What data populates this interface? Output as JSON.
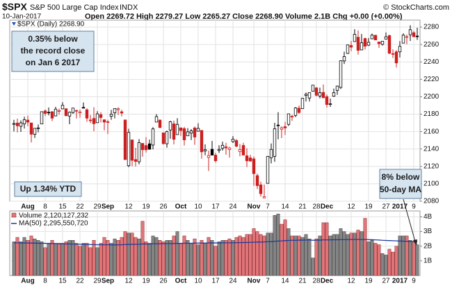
{
  "header": {
    "symbol": "$SPX",
    "name": "S&P 500 Large Cap Index",
    "exchange": "INDX",
    "credit": "© StockCharts.com",
    "date": "10-Jan-2017",
    "quote": "Open 2269.72 High 2279.27 Low 2265.27 Close 2268.90 Volume 2.1B Chg +0.00 (+0.00%)"
  },
  "chart_data": [
    {
      "type": "candlestick",
      "name": "$SPX (Daily) 2268.90",
      "up_color": "#000000",
      "down_color": "#cc1f1f",
      "grid": true,
      "ylim": [
        2080,
        2288
      ],
      "yticks": [
        2080,
        2100,
        2120,
        2140,
        2160,
        2180,
        2200,
        2220,
        2240,
        2260,
        2280
      ],
      "annotations": [
        {
          "lines": [
            "0.35% below",
            "the record close",
            "on Jan 6 2017"
          ]
        },
        {
          "lines": [
            "Up 1.34% YTD"
          ]
        },
        {
          "lines": [
            "8% below",
            "50-day MA"
          ]
        }
      ],
      "categories": [
        null,
        null,
        null,
        null,
        "Aug",
        null,
        null,
        null,
        null,
        "8",
        null,
        null,
        null,
        null,
        "15",
        null,
        null,
        null,
        null,
        "22",
        null,
        null,
        null,
        null,
        "29",
        null,
        null,
        "Sep",
        null,
        null,
        null,
        null,
        null,
        "12",
        null,
        null,
        null,
        null,
        "19",
        null,
        null,
        null,
        null,
        "26",
        null,
        null,
        null,
        null,
        "Oct",
        null,
        null,
        null,
        null,
        "10",
        null,
        null,
        null,
        null,
        "17",
        null,
        null,
        null,
        null,
        "24",
        null,
        null,
        null,
        null,
        null,
        "Nov",
        null,
        null,
        null,
        "7",
        null,
        null,
        null,
        null,
        "14",
        null,
        null,
        null,
        null,
        "21",
        null,
        null,
        null,
        "28",
        null,
        null,
        "Dec",
        null,
        null,
        null,
        null,
        null,
        null,
        "12",
        null,
        null,
        null,
        null,
        "19",
        null,
        null,
        null,
        null,
        "27",
        null,
        null,
        null,
        "2017",
        null,
        null,
        null,
        "9",
        null
      ],
      "open": [
        2168.97,
        2169.81,
        2166.05,
        2168.83,
        2173.15,
        2169.94,
        2156.81,
        2163.51,
        2168.79,
        2183.76,
        2182.24,
        2182.81,
        2177.97,
        2183.74,
        2186.08,
        2186.24,
        2177.84,
        2181.9,
        2184.24,
        2181.58,
        2187.81,
        2185.09,
        2173.29,
        2175.1,
        2170.19,
        2179.45,
        2173.56,
        2171.33,
        2177.49,
        2181.61,
        2185.17,
        2182.76,
        2173.38,
        2120.86,
        2150.47,
        2127.86,
        2125.36,
        2146.48,
        2143.99,
        2145.94,
        2144.58,
        2170.94,
        2173.29,
        2158.54,
        2146.04,
        2161.85,
        2168.9,
        2156.51,
        2164.33,
        2163.37,
        2155.15,
        2158.22,
        2164.19,
        2160.39,
        2161.35,
        2137.67,
        2130.26,
        2139.68,
        2132.95,
        2138.31,
        2140.81,
        2142.51,
        2139.43,
        2148.5,
        2149.72,
        2136.97,
        2144.06,
        2132.23,
        2129.78,
        2128.68,
        2109.43,
        2098.8,
        2083.79,
        2100.59,
        2129.92,
        2131.56,
        2167.49,
        2162.71,
        2165.64,
        2168.29,
        2177.53,
        2178.61,
        2186.85,
        2186.43,
        2201.56,
        2198.55,
        2206.27,
        2210.21,
        2200.76,
        2204.97,
        2200.17,
        2191.12,
        2200.65,
        2207.26,
        2210.72,
        2241.13,
        2249.73,
        2258.83,
        2263.32,
        2268.35,
        2253.77,
        2266.81,
        2259.24,
        2266.5,
        2270.54,
        2262.93,
        2260.25,
        2266.23,
        2270.23,
        2249.5,
        2251.61,
        2251.57,
        2261.6,
        2268.18,
        2271.14,
        2273.59,
        2269.72
      ],
      "high": [
        2173.54,
        2174.98,
        2172.85,
        2177.09,
        2178.29,
        2170.2,
        2163.79,
        2168.19,
        2182.87,
        2185.44,
        2187.66,
        2183.41,
        2188.45,
        2186.28,
        2193.81,
        2186.24,
        2183.08,
        2187.03,
        2185.0,
        2185.15,
        2193.42,
        2186.66,
        2179.0,
        2187.94,
        2183.48,
        2182.27,
        2173.79,
        2173.56,
        2184.87,
        2186.57,
        2187.87,
        2184.94,
        2173.38,
        2163.3,
        2150.47,
        2141.33,
        2151.31,
        2146.48,
        2153.61,
        2150.8,
        2165.11,
        2179.99,
        2173.75,
        2158.54,
        2161.13,
        2172.4,
        2172.67,
        2175.3,
        2164.41,
        2165.46,
        2163.95,
        2162.93,
        2165.86,
        2169.6,
        2161.56,
        2145.36,
        2138.19,
        2149.19,
        2135.61,
        2144.38,
        2148.44,
        2147.18,
        2142.63,
        2154.79,
        2151.44,
        2145.73,
        2147.13,
        2140.72,
        2133.25,
        2131.45,
        2111.76,
        2102.56,
        2099.07,
        2132.0,
        2146.38,
        2170.1,
        2182.3,
        2165.92,
        2171.36,
        2180.84,
        2179.22,
        2188.06,
        2189.89,
        2198.7,
        2204.8,
        2204.72,
        2213.35,
        2211.14,
        2210.46,
        2214.1,
        2202.6,
        2197.95,
        2209.42,
        2212.78,
        2241.63,
        2251.69,
        2259.8,
        2264.03,
        2277.53,
        2276.2,
        2272.12,
        2268.05,
        2267.47,
        2272.56,
        2271.23,
        2263.18,
        2263.79,
        2273.82,
        2271.31,
        2254.51,
        2253.58,
        2263.88,
        2272.82,
        2271.5,
        2282.1,
        2275.49,
        2279.27
      ],
      "low": [
        2160.18,
        2159.07,
        2159.74,
        2163.49,
        2166.21,
        2147.58,
        2152.7,
        2159.07,
        2168.79,
        2177.85,
        2178.61,
        2172.0,
        2177.97,
        2179.42,
        2186.08,
        2178.14,
        2168.5,
        2180.46,
        2175.13,
        2175.96,
        2186.8,
        2171.25,
        2169.74,
        2160.39,
        2170.19,
        2170.41,
        2161.35,
        2157.09,
        2173.59,
        2175.1,
        2179.07,
        2177.49,
        2127.81,
        2119.12,
        2120.27,
        2119.9,
        2122.36,
        2131.2,
        2135.91,
        2139.17,
        2139.57,
        2170.94,
        2163.97,
        2145.04,
        2141.55,
        2151.79,
        2145.2,
        2156.51,
        2154.77,
        2144.01,
        2155.15,
        2150.28,
        2144.85,
        2160.39,
        2128.84,
        2132.77,
        2114.72,
        2132.98,
        2124.43,
        2135.49,
        2138.15,
        2133.44,
        2130.09,
        2146.91,
        2141.93,
        2131.59,
        2132.52,
        2119.36,
        2125.53,
        2097.85,
        2094.0,
        2085.23,
        2083.79,
        2100.59,
        2123.56,
        2125.35,
        2151.17,
        2152.49,
        2156.08,
        2166.38,
        2172.2,
        2176.65,
        2180.38,
        2186.43,
        2194.51,
        2194.51,
        2206.27,
        2200.36,
        2198.15,
        2198.81,
        2187.44,
        2188.37,
        2199.97,
        2202.21,
        2208.93,
        2237.57,
        2249.23,
        2252.37,
        2263.32,
        2248.44,
        2253.77,
        2254.24,
        2258.21,
        2266.14,
        2265.15,
        2256.08,
        2258.84,
        2266.15,
        2249.11,
        2244.56,
        2233.62,
        2245.13,
        2261.6,
        2260.45,
        2264.06,
        2268.9,
        2265.27
      ],
      "close": [
        2169.18,
        2166.58,
        2170.06,
        2173.6,
        2170.84,
        2157.03,
        2163.79,
        2164.25,
        2182.87,
        2180.89,
        2181.74,
        2175.49,
        2185.79,
        2184.05,
        2190.15,
        2178.15,
        2182.22,
        2187.02,
        2183.87,
        2182.64,
        2186.9,
        2175.44,
        2172.47,
        2169.04,
        2180.38,
        2176.12,
        2170.95,
        2170.86,
        2179.98,
        2186.48,
        2186.16,
        2181.3,
        2127.81,
        2159.04,
        2127.02,
        2125.77,
        2147.26,
        2139.16,
        2139.12,
        2139.76,
        2163.12,
        2177.18,
        2164.69,
        2146.1,
        2159.93,
        2171.37,
        2151.13,
        2168.27,
        2161.2,
        2150.49,
        2159.73,
        2160.77,
        2153.74,
        2163.66,
        2136.73,
        2139.18,
        2132.55,
        2132.98,
        2126.5,
        2139.6,
        2144.29,
        2141.34,
        2141.16,
        2151.33,
        2143.16,
        2139.43,
        2133.04,
        2126.41,
        2126.15,
        2111.72,
        2097.94,
        2088.66,
        2085.18,
        2131.52,
        2139.56,
        2163.26,
        2167.48,
        2164.45,
        2164.2,
        2180.39,
        2176.94,
        2187.12,
        2181.9,
        2198.18,
        2202.94,
        2204.72,
        2213.35,
        2201.72,
        2204.66,
        2198.81,
        2191.08,
        2191.95,
        2204.71,
        2212.23,
        2241.35,
        2246.19,
        2259.53,
        2256.96,
        2271.72,
        2253.28,
        2262.03,
        2258.07,
        2262.53,
        2270.76,
        2265.18,
        2260.96,
        2263.79,
        2268.88,
        2249.92,
        2249.26,
        2238.83,
        2257.83,
        2270.75,
        2269.0,
        2276.98,
        2268.9,
        2268.9
      ]
    },
    {
      "type": "bar",
      "grid": true,
      "ylim": [
        0,
        4.4
      ],
      "yticks": [
        {
          "value": 1,
          "label": "1B"
        },
        {
          "value": 2,
          "label": "2B"
        },
        {
          "value": 3,
          "label": "3B"
        },
        {
          "value": 4,
          "label": "4B"
        }
      ],
      "categories": [
        null,
        null,
        null,
        null,
        "Aug",
        null,
        null,
        null,
        null,
        "8",
        null,
        null,
        null,
        null,
        "15",
        null,
        null,
        null,
        null,
        "22",
        null,
        null,
        null,
        null,
        "29",
        null,
        null,
        "Sep",
        null,
        null,
        null,
        null,
        null,
        "12",
        null,
        null,
        null,
        null,
        "19",
        null,
        null,
        null,
        null,
        "26",
        null,
        null,
        null,
        null,
        "Oct",
        null,
        null,
        null,
        null,
        "10",
        null,
        null,
        null,
        null,
        "17",
        null,
        null,
        null,
        null,
        "24",
        null,
        null,
        null,
        null,
        null,
        "Nov",
        null,
        null,
        null,
        "7",
        null,
        null,
        null,
        null,
        "14",
        null,
        null,
        null,
        null,
        "21",
        null,
        null,
        null,
        "28",
        null,
        null,
        "Dec",
        null,
        null,
        null,
        null,
        null,
        null,
        "12",
        null,
        null,
        null,
        null,
        "19",
        null,
        null,
        null,
        null,
        "27",
        null,
        null,
        null,
        "2017",
        null,
        null,
        null,
        "9",
        null
      ],
      "series": [
        {
          "name": "Volume 2,120,127,232",
          "type": "bar",
          "up_color": "#858585",
          "down_color": "#e0767a",
          "values": [
            2.3,
            2.6,
            2.3,
            2.6,
            2.4,
            2.7,
            2.5,
            2.4,
            2.3,
            1.9,
            2.2,
            2.4,
            2.2,
            2.2,
            2.2,
            2.3,
            2.4,
            2.4,
            2.2,
            2.0,
            2.2,
            2.2,
            1.9,
            2.4,
            1.9,
            2.2,
            2.6,
            2.4,
            2.2,
            2.5,
            2.4,
            2.6,
            3.0,
            2.9,
            2.9,
            2.6,
            2.5,
            3.7,
            2.3,
            2.2,
            2.7,
            2.6,
            2.4,
            2.3,
            2.4,
            2.4,
            2.7,
            3.0,
            2.2,
            2.7,
            2.4,
            2.2,
            2.5,
            2.1,
            2.4,
            2.2,
            2.6,
            2.4,
            2.0,
            2.3,
            2.4,
            2.4,
            2.5,
            2.4,
            2.6,
            2.7,
            2.6,
            2.8,
            2.8,
            3.2,
            3.0,
            2.8,
            2.7,
            2.9,
            2.9,
            4.1,
            4.2,
            3.5,
            3.8,
            3.2,
            2.7,
            2.7,
            2.7,
            2.6,
            2.8,
            2.5,
            1.2,
            2.5,
            2.7,
            3.6,
            3.6,
            2.7,
            2.8,
            2.8,
            3.2,
            3.0,
            2.8,
            2.9,
            2.9,
            3.1,
            3.0,
            3.9,
            2.3,
            2.4,
            2.2,
            2.1,
            1.5,
            1.4,
            1.8,
            1.6,
            2.0,
            2.7,
            2.7,
            2.7,
            2.4,
            2.3,
            2.1
          ]
        },
        {
          "name": "MA(50) 2,295,550,720",
          "type": "line",
          "color": "#1f3a9e",
          "values": [
            2.23,
            2.23,
            2.22,
            2.22,
            2.22,
            2.21,
            2.21,
            2.2,
            2.2,
            2.19,
            2.18,
            2.18,
            2.17,
            2.16,
            2.16,
            2.15,
            2.15,
            2.14,
            2.13,
            2.13,
            2.12,
            2.12,
            2.11,
            2.11,
            2.1,
            2.1,
            2.1,
            2.1,
            2.09,
            2.09,
            2.09,
            2.1,
            2.11,
            2.12,
            2.12,
            2.13,
            2.13,
            2.15,
            2.15,
            2.15,
            2.16,
            2.16,
            2.16,
            2.17,
            2.17,
            2.17,
            2.18,
            2.19,
            2.19,
            2.2,
            2.2,
            2.2,
            2.21,
            2.21,
            2.21,
            2.21,
            2.22,
            2.22,
            2.22,
            2.22,
            2.23,
            2.23,
            2.23,
            2.23,
            2.24,
            2.24,
            2.25,
            2.25,
            2.26,
            2.27,
            2.28,
            2.28,
            2.29,
            2.3,
            2.31,
            2.33,
            2.35,
            2.36,
            2.38,
            2.39,
            2.4,
            2.4,
            2.41,
            2.41,
            2.42,
            2.42,
            2.4,
            2.41,
            2.41,
            2.43,
            2.43,
            2.43,
            2.44,
            2.44,
            2.45,
            2.45,
            2.45,
            2.46,
            2.46,
            2.46,
            2.45,
            2.46,
            2.45,
            2.44,
            2.43,
            2.42,
            2.4,
            2.39,
            2.38,
            2.37,
            2.36,
            2.35,
            2.34,
            2.33,
            2.32,
            2.31,
            2.3
          ]
        }
      ]
    }
  ]
}
